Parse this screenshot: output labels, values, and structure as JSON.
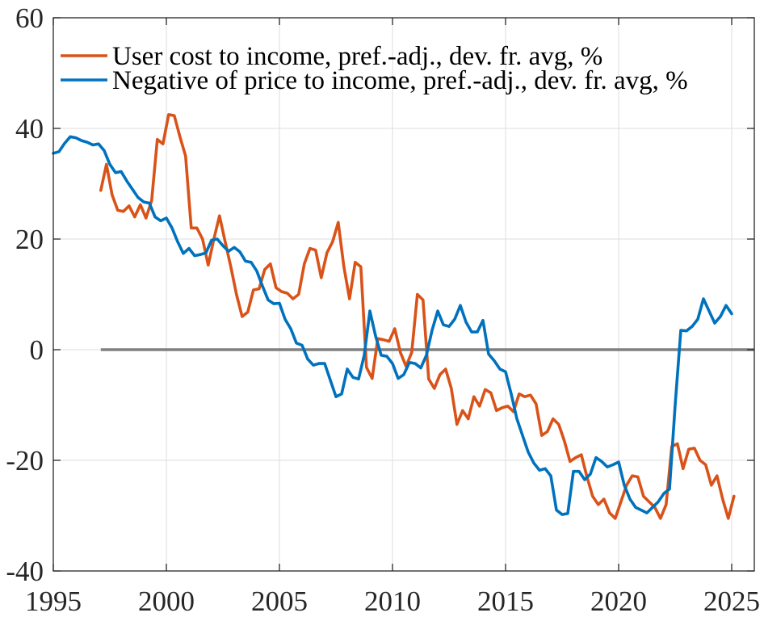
{
  "chart_data": {
    "type": "line",
    "title": "",
    "xlabel": "",
    "ylabel": "",
    "xlim": [
      1995,
      2026
    ],
    "ylim": [
      -40,
      60
    ],
    "xticks": [
      1995,
      2000,
      2005,
      2010,
      2015,
      2020,
      2025
    ],
    "yticks": [
      -40,
      -20,
      0,
      20,
      40,
      60
    ],
    "xtick_labels": [
      "1995",
      "2000",
      "2005",
      "2010",
      "2015",
      "2020",
      "2025"
    ],
    "ytick_labels": [
      "-40",
      "-20",
      "0",
      "20",
      "40",
      "60"
    ],
    "grid": true,
    "legend_position": "top-left",
    "reference_line": {
      "y": 0,
      "x_start": 1997.1,
      "x_end": 2026,
      "color": "#808080"
    },
    "series": [
      {
        "name": "User cost to income, pref.-adj., dev. fr. avg, %",
        "color": "#D95319",
        "x_start": 1997.1,
        "x_step": 0.25,
        "values": [
          28.8,
          33.5,
          28.0,
          25.2,
          25.0,
          26.0,
          24.0,
          26.2,
          23.8,
          27.0,
          38.0,
          37.2,
          42.5,
          42.3,
          38.5,
          35.0,
          22.0,
          22.0,
          20.0,
          15.3,
          20.0,
          24.2,
          19.5,
          15.0,
          10.0,
          6.0,
          6.8,
          10.8,
          11.0,
          14.5,
          15.5,
          11.2,
          10.5,
          10.2,
          9.2,
          10.0,
          15.5,
          18.3,
          18.0,
          13.0,
          17.5,
          19.5,
          23.0,
          15.0,
          9.2,
          15.8,
          15.0,
          -3.2,
          -5.2,
          2.0,
          1.8,
          1.5,
          3.8,
          -0.5,
          -3.0,
          -0.5,
          10.0,
          9.0,
          -5.3,
          -7.0,
          -4.5,
          -3.5,
          -7.0,
          -13.5,
          -11.0,
          -12.5,
          -8.5,
          -10.2,
          -7.2,
          -7.8,
          -11.0,
          -10.5,
          -10.2,
          -11.2,
          -8.0,
          -8.5,
          -8.2,
          -9.8,
          -15.5,
          -14.8,
          -12.5,
          -13.5,
          -16.5,
          -20.2,
          -19.5,
          -19.0,
          -23.0,
          -26.5,
          -28.0,
          -27.0,
          -29.5,
          -30.5,
          -27.5,
          -24.5,
          -22.8,
          -23.0,
          -26.5,
          -27.5,
          -28.5,
          -30.5,
          -28.0,
          -17.5,
          -17.0,
          -21.5,
          -18.0,
          -17.8,
          -20.0,
          -20.8,
          -24.5,
          -22.8,
          -27.0,
          -30.5,
          -26.5
        ]
      },
      {
        "name": "Negative of price to income, pref.-adj., dev. fr. avg, %",
        "color": "#0072BD",
        "x_start": 1995.0,
        "x_step": 0.25,
        "values": [
          35.5,
          35.8,
          37.3,
          38.5,
          38.3,
          37.8,
          37.5,
          37.0,
          37.2,
          36.0,
          33.5,
          32.0,
          32.2,
          30.5,
          29.0,
          27.5,
          26.7,
          26.5,
          24.0,
          23.3,
          23.8,
          22.0,
          19.5,
          17.4,
          18.3,
          17.0,
          17.2,
          17.5,
          19.8,
          20.0,
          18.8,
          17.8,
          18.5,
          17.7,
          16.0,
          15.8,
          14.2,
          11.5,
          9.0,
          8.3,
          8.4,
          5.5,
          3.8,
          1.2,
          0.8,
          -1.7,
          -2.8,
          -2.5,
          -2.5,
          -5.5,
          -8.5,
          -8.0,
          -3.5,
          -5.0,
          -5.3,
          -1.0,
          7.0,
          2.5,
          -1.0,
          -1.2,
          -2.5,
          -5.2,
          -4.5,
          -2.3,
          -2.5,
          -3.3,
          -1.0,
          3.5,
          7.0,
          4.5,
          4.2,
          5.5,
          8.0,
          5.0,
          3.2,
          3.2,
          5.3,
          -0.8,
          -2.0,
          -3.5,
          -4.0,
          -8.0,
          -12.5,
          -15.5,
          -18.5,
          -20.5,
          -21.8,
          -21.5,
          -22.8,
          -29.0,
          -29.8,
          -29.6,
          -22.0,
          -22.0,
          -23.5,
          -22.5,
          -19.5,
          -20.2,
          -21.2,
          -20.8,
          -20.3,
          -24.5,
          -27.0,
          -28.5,
          -29.0,
          -29.5,
          -28.5,
          -27.5,
          -26.0,
          -25.2,
          -10.0,
          3.5,
          3.4,
          4.2,
          5.5,
          9.2,
          7.0,
          4.8,
          6.0,
          8.0,
          6.5
        ]
      }
    ]
  }
}
